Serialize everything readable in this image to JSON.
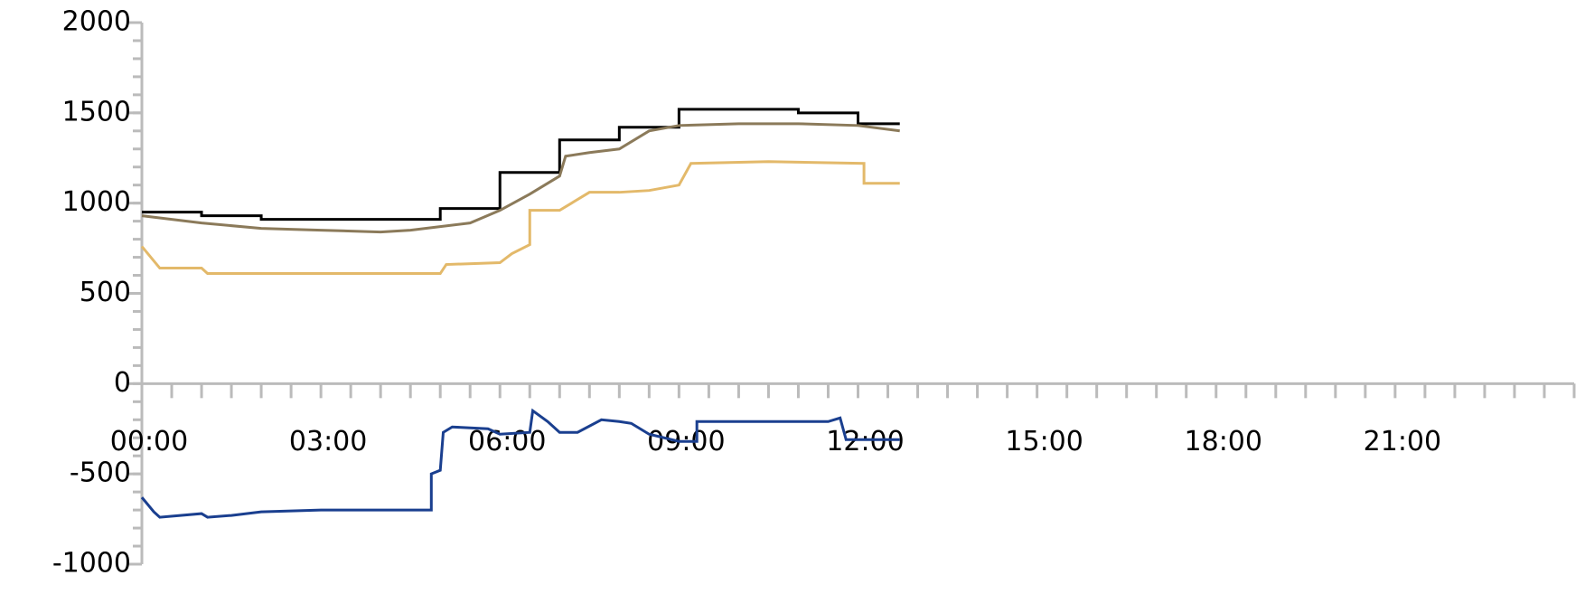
{
  "chart_data": {
    "type": "line",
    "xlim": [
      0,
      24
    ],
    "xticks": [
      {
        "value": 0,
        "label": "00:00"
      },
      {
        "value": 3,
        "label": "03:00"
      },
      {
        "value": 6,
        "label": "06:00"
      },
      {
        "value": 9,
        "label": "09:00"
      },
      {
        "value": 12,
        "label": "12:00"
      },
      {
        "value": 15,
        "label": "15:00"
      },
      {
        "value": 18,
        "label": "18:00"
      },
      {
        "value": 21,
        "label": "21:00"
      }
    ],
    "xminor": [
      0,
      0.5,
      1,
      1.5,
      2,
      2.5,
      3,
      3.5,
      4,
      4.5,
      5,
      5.5,
      6,
      6.5,
      7,
      7.5,
      8,
      8.5,
      9,
      9.5,
      10,
      10.5,
      11,
      11.5,
      12,
      12.5,
      13,
      13.5,
      14,
      14.5,
      15,
      15.5,
      16,
      16.5,
      17,
      17.5,
      18,
      18.5,
      19,
      19.5,
      20,
      20.5,
      21,
      21.5,
      22,
      22.5,
      23,
      23.5,
      24
    ],
    "ylim": [
      -1000,
      2000
    ],
    "yticks": [
      -1000,
      -500,
      0,
      500,
      1000,
      1500,
      2000
    ],
    "yminor": [
      -1000,
      -900,
      -800,
      -700,
      -600,
      -500,
      -400,
      -300,
      -200,
      -100,
      0,
      100,
      200,
      300,
      400,
      500,
      600,
      700,
      800,
      900,
      1000,
      1100,
      1200,
      1300,
      1400,
      1500,
      1600,
      1700,
      1800,
      1900,
      2000
    ],
    "series": [
      {
        "color": "#000000",
        "x": [
          0,
          1,
          1,
          2,
          2,
          5,
          5,
          6,
          6,
          7,
          7,
          8,
          8,
          9,
          9,
          11,
          11,
          12,
          12,
          12.7
        ],
        "values": [
          950,
          950,
          930,
          930,
          910,
          910,
          970,
          970,
          1170,
          1170,
          1350,
          1350,
          1420,
          1420,
          1520,
          1520,
          1500,
          1500,
          1440,
          1440
        ]
      },
      {
        "color": "#8b7a5a",
        "x": [
          0,
          1,
          2,
          3,
          4,
          4.5,
          5,
          5.5,
          6,
          6.5,
          7,
          7.1,
          7.5,
          8,
          8.5,
          9,
          10,
          11,
          12,
          12.7
        ],
        "values": [
          930,
          890,
          860,
          850,
          840,
          850,
          870,
          890,
          960,
          1050,
          1150,
          1260,
          1280,
          1300,
          1400,
          1430,
          1440,
          1440,
          1430,
          1400
        ]
      },
      {
        "color": "#e3b96a",
        "x": [
          0,
          0.3,
          1,
          1.1,
          5,
          5.1,
          6,
          6.2,
          6.5,
          6.5,
          7,
          7.2,
          7.5,
          8,
          8.5,
          9,
          9.2,
          10.5,
          12.1,
          12.1,
          12.7
        ],
        "values": [
          760,
          640,
          640,
          610,
          610,
          660,
          670,
          720,
          770,
          960,
          960,
          1000,
          1060,
          1060,
          1070,
          1100,
          1220,
          1230,
          1220,
          1110,
          1110
        ]
      },
      {
        "color": "#1a3f8f",
        "x": [
          0,
          0.2,
          0.3,
          1,
          1.1,
          1.5,
          2,
          3,
          4,
          4.85,
          4.85,
          5,
          5.05,
          5.2,
          5.8,
          6,
          6.5,
          6.55,
          6.8,
          7,
          7.3,
          7.7,
          8,
          8.2,
          8.5,
          9,
          9.3,
          9.3,
          11,
          11.5,
          11.7,
          11.8,
          12.7
        ],
        "values": [
          -630,
          -710,
          -740,
          -720,
          -740,
          -730,
          -710,
          -700,
          -700,
          -700,
          -500,
          -480,
          -270,
          -240,
          -250,
          -280,
          -270,
          -150,
          -210,
          -270,
          -270,
          -200,
          -210,
          -220,
          -280,
          -320,
          -320,
          -210,
          -210,
          -210,
          -190,
          -310,
          -310
        ]
      }
    ]
  }
}
